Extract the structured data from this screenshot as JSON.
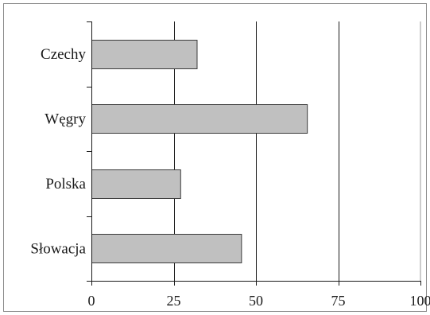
{
  "chart_data": {
    "type": "bar",
    "orientation": "horizontal",
    "categories": [
      "Czechy",
      "Węgry",
      "Polska",
      "Słowacja"
    ],
    "values": [
      32,
      65.5,
      27,
      45.5
    ],
    "xlim": [
      0,
      100
    ],
    "xticks": [
      "0",
      "25",
      "50",
      "75",
      "100"
    ],
    "grid": "vertical",
    "colors": {
      "bar_fill": "#c0c0c0",
      "bar_stroke": "#3a3a3a",
      "axis": "#1a1a1a",
      "grid": "#1a1a1a",
      "frame": "#8a8a8a"
    }
  }
}
